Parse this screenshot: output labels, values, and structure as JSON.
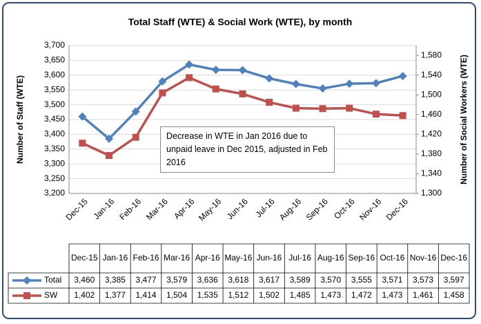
{
  "chart_data": {
    "type": "line",
    "title": "Total Staff (WTE) & Social Work (WTE), by month",
    "y_label": "Number of Staff (WTE)",
    "y2_label": "Number of Social Workers (WTE)",
    "annotation": "Decrease in WTE in Jan 2016  due to unpaid leave in Dec 2015, adjusted in Feb 2016",
    "categories": [
      "Dec-15",
      "Jan-16",
      "Feb-16",
      "Mar-16",
      "Apr-16",
      "May-16",
      "Jun-16",
      "Jul-16",
      "Aug-16",
      "Sep-16",
      "Oct-16",
      "Nov-16",
      "Dec-16"
    ],
    "series": [
      {
        "name": "Total",
        "color": "#4f81bd",
        "marker": "diamond",
        "axis": "y",
        "values": [
          3460,
          3385,
          3477,
          3579,
          3636,
          3618,
          3617,
          3589,
          3570,
          3555,
          3571,
          3573,
          3597
        ],
        "value_labels": [
          "3,460",
          "3,385",
          "3,477",
          "3,579",
          "3,636",
          "3,618",
          "3,617",
          "3,589",
          "3,570",
          "3,555",
          "3,571",
          "3,573",
          "3,597"
        ]
      },
      {
        "name": "SW",
        "color": "#c0504d",
        "marker": "square",
        "axis": "y2",
        "values": [
          1402,
          1377,
          1414,
          1504,
          1535,
          1512,
          1502,
          1485,
          1473,
          1472,
          1473,
          1461,
          1458
        ],
        "value_labels": [
          "1,402",
          "1,377",
          "1,414",
          "1,504",
          "1,535",
          "1,512",
          "1,502",
          "1,485",
          "1,473",
          "1,472",
          "1,473",
          "1,461",
          "1,458"
        ]
      }
    ],
    "ylim": [
      3200,
      3700
    ],
    "yticks": [
      {
        "value": 3200,
        "label": "3,200"
      },
      {
        "value": 3250,
        "label": "3,250"
      },
      {
        "value": 3300,
        "label": "3,300"
      },
      {
        "value": 3350,
        "label": "3,350"
      },
      {
        "value": 3400,
        "label": "3,400"
      },
      {
        "value": 3450,
        "label": "3,450"
      },
      {
        "value": 3500,
        "label": "3,500"
      },
      {
        "value": 3550,
        "label": "3,550"
      },
      {
        "value": 3600,
        "label": "3,600"
      },
      {
        "value": 3650,
        "label": "3,650"
      },
      {
        "value": 3700,
        "label": "3,700"
      }
    ],
    "y2lim": [
      1300,
      1600
    ],
    "y2ticks": [
      {
        "value": 1300,
        "label": "1,300"
      },
      {
        "value": 1340,
        "label": "1,340"
      },
      {
        "value": 1380,
        "label": "1,380"
      },
      {
        "value": 1420,
        "label": "1,420"
      },
      {
        "value": 1460,
        "label": "1,460"
      },
      {
        "value": 1500,
        "label": "1,500"
      },
      {
        "value": 1540,
        "label": "1,540"
      },
      {
        "value": 1580,
        "label": "1,580"
      }
    ],
    "grid": true,
    "data_table": true
  }
}
